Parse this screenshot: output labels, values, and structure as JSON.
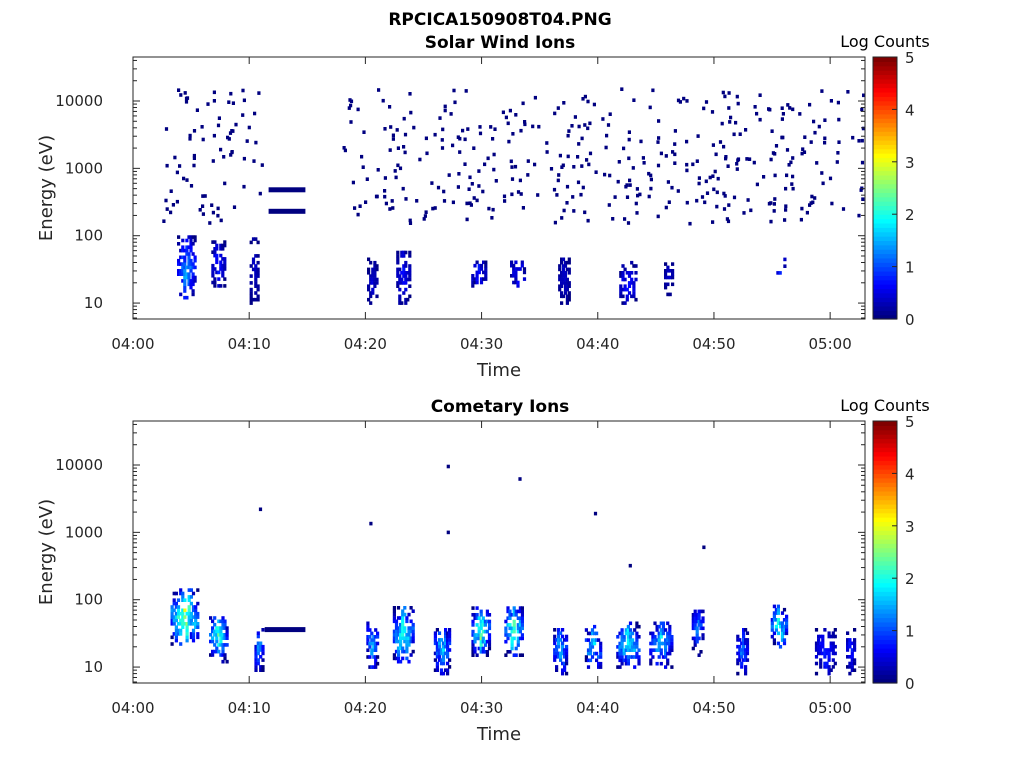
{
  "figure": {
    "title": "RPCICA150908T04.PNG"
  },
  "chart_data": [
    {
      "type": "heatmap",
      "title": "Solar Wind Ions",
      "xlabel": "Time",
      "ylabel": "Energy (eV)",
      "y_scale": "log",
      "ylim": [
        5.8,
        45000
      ],
      "xlim": [
        "04:00",
        "05:03"
      ],
      "x_ticks": [
        "04:00",
        "04:10",
        "04:20",
        "04:30",
        "04:40",
        "04:50",
        "05:00"
      ],
      "y_ticks": [
        "10",
        "100",
        "1000",
        "10000"
      ],
      "colorbar": {
        "label": "Log Counts",
        "ticks": [
          "0",
          "1",
          "2",
          "3",
          "4",
          "5"
        ],
        "range": [
          0,
          5
        ],
        "colormap": "jet"
      },
      "features": [
        {
          "kind": "band",
          "time_start": "04:11:40",
          "time_end": "04:14:50",
          "energy": 480,
          "log_counts": 0
        },
        {
          "kind": "band",
          "time_start": "04:11:40",
          "time_end": "04:14:50",
          "energy": 230,
          "log_counts": 0
        },
        {
          "kind": "burst",
          "time_center": "04:04:30",
          "time_width_min": 1.6,
          "energy_low": 12,
          "energy_high": 100,
          "log_counts": [
            0,
            1.8
          ]
        },
        {
          "kind": "burst",
          "time_center": "04:07:15",
          "time_width_min": 1.2,
          "energy_low": 18,
          "energy_high": 90,
          "log_counts": [
            0,
            0.9
          ]
        },
        {
          "kind": "burst",
          "time_center": "04:10:20",
          "time_width_min": 0.8,
          "energy_low": 10,
          "energy_high": 100,
          "log_counts": [
            0,
            0.5
          ]
        },
        {
          "kind": "burst",
          "time_center": "04:20:30",
          "time_width_min": 0.9,
          "energy_low": 10,
          "energy_high": 45,
          "log_counts": [
            0,
            0.5
          ]
        },
        {
          "kind": "burst",
          "time_center": "04:23:10",
          "time_width_min": 1.2,
          "energy_low": 10,
          "energy_high": 60,
          "log_counts": [
            0,
            0.8
          ]
        },
        {
          "kind": "burst",
          "time_center": "04:29:40",
          "time_width_min": 1.3,
          "energy_low": 18,
          "energy_high": 45,
          "log_counts": [
            0,
            0.9
          ]
        },
        {
          "kind": "burst",
          "time_center": "04:33:00",
          "time_width_min": 1.3,
          "energy_low": 18,
          "energy_high": 45,
          "log_counts": [
            0,
            0.9
          ]
        },
        {
          "kind": "burst",
          "time_center": "04:37:00",
          "time_width_min": 1.0,
          "energy_low": 10,
          "energy_high": 45,
          "log_counts": [
            0,
            0.5
          ]
        },
        {
          "kind": "burst",
          "time_center": "04:42:30",
          "time_width_min": 1.5,
          "energy_low": 10,
          "energy_high": 40,
          "log_counts": [
            0,
            0.9
          ]
        },
        {
          "kind": "burst",
          "time_center": "04:46:00",
          "time_width_min": 0.8,
          "energy_low": 12,
          "energy_high": 40,
          "log_counts": [
            0,
            0.5
          ]
        },
        {
          "kind": "burst",
          "time_center": "04:55:40",
          "time_width_min": 0.8,
          "energy_low": 25,
          "energy_high": 45,
          "log_counts": [
            0,
            1.2
          ]
        },
        {
          "kind": "sparse",
          "time_start": "04:02:30",
          "time_end": "04:11:00",
          "energy_low": 150,
          "energy_high": 15000,
          "log_counts": 0
        },
        {
          "kind": "sparse",
          "time_start": "04:18:00",
          "time_end": "05:03:00",
          "energy_low": 150,
          "energy_high": 15000,
          "log_counts": 0
        }
      ]
    },
    {
      "type": "heatmap",
      "title": "Cometary Ions",
      "xlabel": "Time",
      "ylabel": "Energy (eV)",
      "y_scale": "log",
      "ylim": [
        5.8,
        45000
      ],
      "xlim": [
        "04:00",
        "05:03"
      ],
      "x_ticks": [
        "04:00",
        "04:10",
        "04:20",
        "04:30",
        "04:40",
        "04:50",
        "05:00"
      ],
      "y_ticks": [
        "10",
        "100",
        "1000",
        "10000"
      ],
      "colorbar": {
        "label": "Log Counts",
        "ticks": [
          "0",
          "1",
          "2",
          "3",
          "4",
          "5"
        ],
        "range": [
          0,
          5
        ],
        "colormap": "jet"
      },
      "features": [
        {
          "kind": "band",
          "time_start": "04:11:20",
          "time_end": "04:14:50",
          "energy": 36,
          "log_counts": 0
        },
        {
          "kind": "burst",
          "time_center": "04:04:20",
          "time_width_min": 2.4,
          "energy_low": 22,
          "energy_high": 150,
          "log_counts": [
            0,
            3.2
          ]
        },
        {
          "kind": "burst",
          "time_center": "04:07:15",
          "time_width_min": 1.6,
          "energy_low": 12,
          "energy_high": 60,
          "log_counts": [
            0,
            2.7
          ]
        },
        {
          "kind": "burst",
          "time_center": "04:10:45",
          "time_width_min": 0.8,
          "energy_low": 8,
          "energy_high": 40,
          "log_counts": [
            0,
            1.8
          ]
        },
        {
          "kind": "burst",
          "time_center": "04:20:30",
          "time_width_min": 1.0,
          "energy_low": 10,
          "energy_high": 50,
          "log_counts": [
            0,
            2.0
          ]
        },
        {
          "kind": "burst",
          "time_center": "04:23:10",
          "time_width_min": 1.8,
          "energy_low": 12,
          "energy_high": 80,
          "log_counts": [
            0,
            2.6
          ]
        },
        {
          "kind": "burst",
          "time_center": "04:26:30",
          "time_width_min": 1.4,
          "energy_low": 8,
          "energy_high": 40,
          "log_counts": [
            0,
            2.0
          ]
        },
        {
          "kind": "burst",
          "time_center": "04:29:50",
          "time_width_min": 1.6,
          "energy_low": 15,
          "energy_high": 80,
          "log_counts": [
            0,
            2.8
          ]
        },
        {
          "kind": "burst",
          "time_center": "04:32:40",
          "time_width_min": 1.6,
          "energy_low": 15,
          "energy_high": 80,
          "log_counts": [
            0,
            2.8
          ]
        },
        {
          "kind": "burst",
          "time_center": "04:36:40",
          "time_width_min": 1.2,
          "energy_low": 8,
          "energy_high": 40,
          "log_counts": [
            0,
            2.0
          ]
        },
        {
          "kind": "burst",
          "time_center": "04:39:30",
          "time_width_min": 1.4,
          "energy_low": 10,
          "energy_high": 40,
          "log_counts": [
            0,
            2.2
          ]
        },
        {
          "kind": "burst",
          "time_center": "04:42:30",
          "time_width_min": 2.0,
          "energy_low": 10,
          "energy_high": 45,
          "log_counts": [
            0,
            2.5
          ]
        },
        {
          "kind": "burst",
          "time_center": "04:45:20",
          "time_width_min": 2.0,
          "energy_low": 10,
          "energy_high": 45,
          "log_counts": [
            0,
            2.0
          ]
        },
        {
          "kind": "burst",
          "time_center": "04:48:30",
          "time_width_min": 1.0,
          "energy_low": 15,
          "energy_high": 70,
          "log_counts": [
            0,
            1.6
          ]
        },
        {
          "kind": "burst",
          "time_center": "04:52:20",
          "time_width_min": 1.0,
          "energy_low": 8,
          "energy_high": 40,
          "log_counts": [
            0,
            1.5
          ]
        },
        {
          "kind": "burst",
          "time_center": "04:55:30",
          "time_width_min": 1.4,
          "energy_low": 20,
          "energy_high": 80,
          "log_counts": [
            0,
            2.6
          ]
        },
        {
          "kind": "burst",
          "time_center": "04:59:30",
          "time_width_min": 1.8,
          "energy_low": 8,
          "energy_high": 40,
          "log_counts": [
            0,
            1.0
          ]
        },
        {
          "kind": "burst",
          "time_center": "05:01:40",
          "time_width_min": 0.8,
          "energy_low": 8,
          "energy_high": 40,
          "log_counts": [
            0,
            1.0
          ]
        },
        {
          "kind": "point",
          "time": "04:10:50",
          "energy": 2200,
          "log_counts": 0
        },
        {
          "kind": "point",
          "time": "04:20:20",
          "energy": 1350,
          "log_counts": 0
        },
        {
          "kind": "point",
          "time": "04:27:00",
          "energy": 9500,
          "log_counts": 0
        },
        {
          "kind": "point",
          "time": "04:27:00",
          "energy": 1000,
          "log_counts": 0
        },
        {
          "kind": "point",
          "time": "04:33:10",
          "energy": 6200,
          "log_counts": 0
        },
        {
          "kind": "point",
          "time": "04:39:40",
          "energy": 1900,
          "log_counts": 0
        },
        {
          "kind": "point",
          "time": "04:49:00",
          "energy": 600,
          "log_counts": 0
        },
        {
          "kind": "point",
          "time": "04:42:40",
          "energy": 320,
          "log_counts": 0
        }
      ]
    }
  ]
}
